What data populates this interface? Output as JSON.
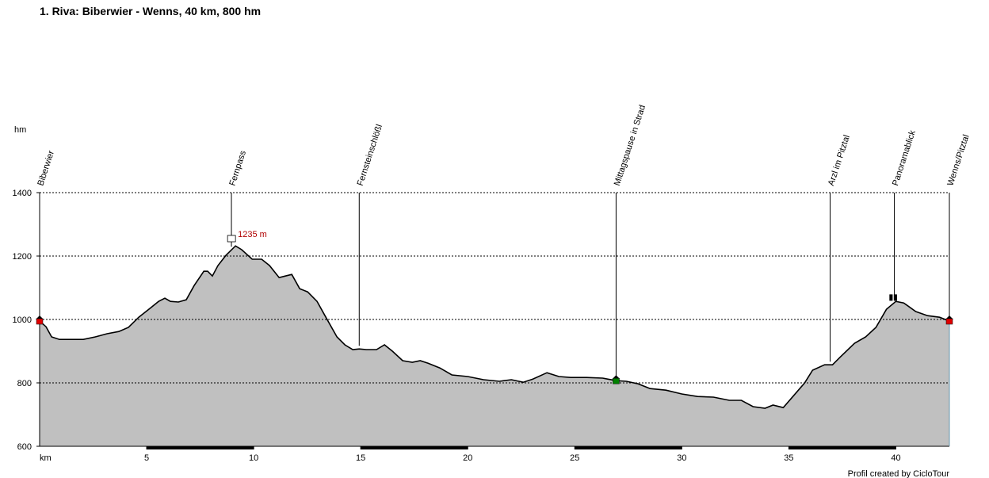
{
  "chart_data": {
    "type": "area",
    "title": "1. Riva: Biberwier - Wenns, 40 km, 800 hm",
    "y_label": "hm",
    "x_label": "km",
    "footer": "Profil created by CicloTour",
    "color": "#c0c0c0",
    "xlim": [
      0,
      42.5
    ],
    "ylim": [
      600,
      1400
    ],
    "xticks": [
      5,
      10,
      15,
      20,
      25,
      30,
      35,
      40
    ],
    "yticks": [
      600,
      800,
      1000,
      1200,
      1400
    ],
    "grid": true,
    "x": [
      0,
      0.3,
      0.56,
      0.93,
      1.48,
      2.04,
      2.6,
      3.15,
      3.7,
      4.15,
      4.63,
      5.19,
      5.56,
      5.85,
      6.11,
      6.48,
      6.85,
      7.22,
      7.67,
      7.85,
      8.07,
      8.33,
      8.7,
      9.15,
      9.44,
      9.93,
      10.37,
      10.74,
      11.19,
      11.48,
      11.78,
      12.15,
      12.52,
      12.96,
      13.33,
      13.89,
      14.26,
      14.63,
      14.93,
      15.26,
      15.74,
      16.11,
      16.48,
      16.96,
      17.41,
      17.78,
      18.15,
      18.7,
      19.26,
      20,
      20.74,
      21.48,
      22.04,
      22.59,
      23.04,
      23.7,
      24.26,
      24.81,
      25.56,
      26.3,
      26.93,
      27.41,
      27.96,
      28.52,
      29.26,
      30,
      30.74,
      31.48,
      32.22,
      32.78,
      33.33,
      33.89,
      34.26,
      34.74,
      35.19,
      35.74,
      36.11,
      36.67,
      37.04,
      37.41,
      38.07,
      38.59,
      39.07,
      39.56,
      40,
      40.37,
      40.93,
      41.48,
      42.04,
      42.5
    ],
    "values": [
      995,
      977,
      945,
      937,
      937,
      937,
      945,
      955,
      962,
      975,
      1007,
      1037,
      1057,
      1067,
      1057,
      1055,
      1062,
      1107,
      1152,
      1152,
      1137,
      1170,
      1202,
      1232,
      1220,
      1190,
      1190,
      1170,
      1132,
      1137,
      1142,
      1097,
      1087,
      1057,
      1012,
      945,
      920,
      905,
      907,
      905,
      905,
      920,
      900,
      870,
      865,
      870,
      862,
      847,
      825,
      820,
      810,
      805,
      810,
      802,
      812,
      832,
      820,
      817,
      817,
      815,
      807,
      805,
      797,
      782,
      777,
      765,
      757,
      755,
      745,
      745,
      725,
      720,
      730,
      722,
      757,
      800,
      840,
      857,
      857,
      882,
      925,
      945,
      975,
      1032,
      1057,
      1052,
      1025,
      1012,
      1007,
      995
    ],
    "waypoints": [
      {
        "name": "Biberwier",
        "x": 0
      },
      {
        "name": "Fernpass",
        "x": 8.96
      },
      {
        "name": "Fernsteinschlößl",
        "x": 14.93
      },
      {
        "name": "Mittagspause in Strad",
        "x": 26.93
      },
      {
        "name": "Arzl im Pitztal",
        "x": 36.93
      },
      {
        "name": "Panoramablick",
        "x": 39.93
      },
      {
        "name": "Wenns/Pitztal",
        "x": 42.5
      }
    ],
    "peak": {
      "x": 9.15,
      "value": 1235,
      "label": "1235 m"
    }
  }
}
